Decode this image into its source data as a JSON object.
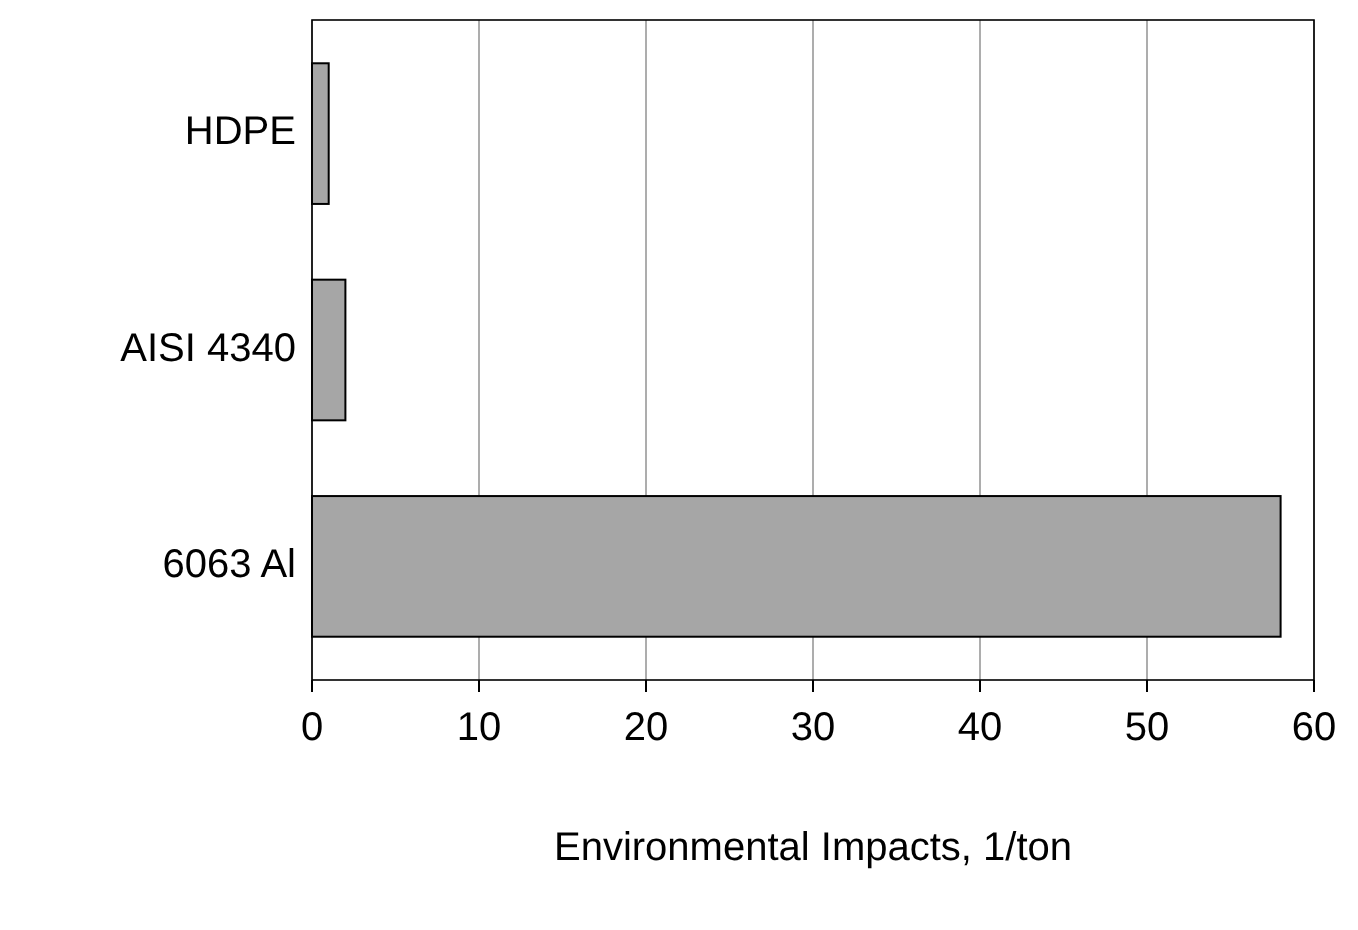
{
  "chart_data": {
    "type": "bar",
    "orientation": "horizontal",
    "xlabel": "Environmental Impacts, 1/ton",
    "categories": [
      "HDPE",
      "AISI 4340",
      "6063 Al"
    ],
    "values": [
      1,
      2,
      58
    ],
    "color": "#a6a6a6",
    "xlim": [
      0,
      60
    ],
    "xticks": [
      0,
      10,
      20,
      30,
      40,
      50,
      60
    ],
    "grid": "x"
  }
}
